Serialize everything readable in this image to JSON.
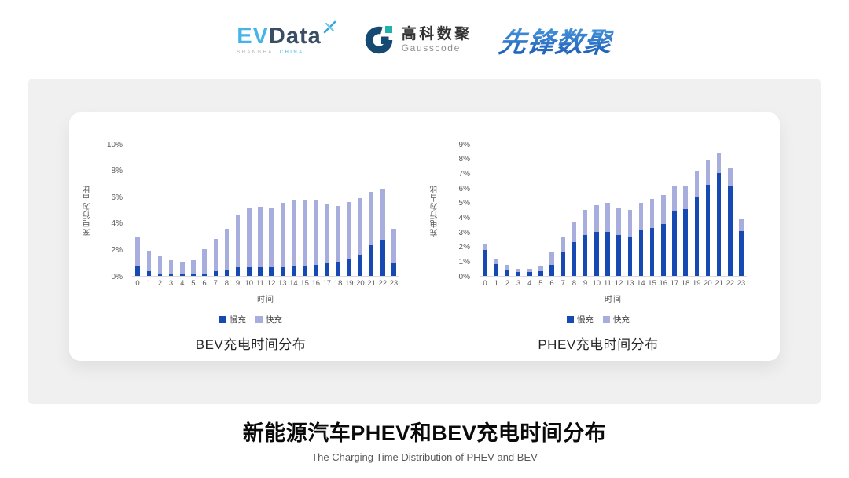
{
  "header": {
    "evdata": {
      "ev": "EV",
      "data": "Data",
      "sub_left": "SHANGHAI",
      "sub_right": "CHINA"
    },
    "gausscode": {
      "name_cn": "高科数聚",
      "name_en": "Gausscode"
    },
    "pioneer": {
      "name": "先锋数聚"
    }
  },
  "colors": {
    "slow_charge": "#1649b2",
    "fast_charge": "#a7aede",
    "evdata_blue": "#45b5e8",
    "evdata_dark": "#3a4e63",
    "gauss_navy": "#174a72",
    "gauss_teal": "#1fb1ac",
    "pioneer_blue": "#2b77cf",
    "panel_gray": "#f0f0f0"
  },
  "chart_data": [
    {
      "type": "bar",
      "stacked": true,
      "title": "BEV充电时间分布",
      "xlabel": "时间",
      "ylabel": "充电行为占比",
      "grid": false,
      "legend_position": "bottom",
      "categories": [
        "0",
        "1",
        "2",
        "3",
        "4",
        "5",
        "6",
        "7",
        "8",
        "9",
        "10",
        "11",
        "12",
        "13",
        "14",
        "15",
        "16",
        "17",
        "18",
        "19",
        "20",
        "21",
        "22",
        "23"
      ],
      "ylim": [
        0,
        10
      ],
      "ytick_step": 2,
      "ytick_suffix": "%",
      "series": [
        {
          "name": "慢充",
          "color": "#1649b2",
          "values": [
            0.8,
            0.35,
            0.2,
            0.1,
            0.1,
            0.1,
            0.15,
            0.35,
            0.5,
            0.7,
            0.65,
            0.7,
            0.65,
            0.7,
            0.75,
            0.75,
            0.85,
            1.0,
            1.1,
            1.3,
            1.6,
            2.35,
            2.75,
            0.95
          ]
        },
        {
          "name": "快充",
          "color": "#a7aede",
          "values": [
            2.1,
            1.55,
            1.3,
            1.1,
            1.0,
            1.1,
            1.85,
            2.45,
            3.05,
            3.9,
            4.55,
            4.55,
            4.55,
            4.85,
            5.0,
            5.0,
            4.95,
            4.5,
            4.2,
            4.3,
            4.3,
            4.0,
            3.8,
            2.6
          ]
        }
      ]
    },
    {
      "type": "bar",
      "stacked": true,
      "title": "PHEV充电时间分布",
      "xlabel": "时间",
      "ylabel": "充电行为占比",
      "grid": false,
      "legend_position": "bottom",
      "categories": [
        "0",
        "1",
        "2",
        "3",
        "4",
        "5",
        "6",
        "7",
        "8",
        "9",
        "10",
        "11",
        "12",
        "13",
        "14",
        "15",
        "16",
        "17",
        "18",
        "19",
        "20",
        "21",
        "22",
        "23"
      ],
      "ylim": [
        0,
        9
      ],
      "ytick_step": 1,
      "ytick_suffix": "%",
      "series": [
        {
          "name": "慢充",
          "color": "#1649b2",
          "values": [
            1.75,
            0.8,
            0.45,
            0.25,
            0.25,
            0.3,
            0.75,
            1.6,
            2.3,
            2.8,
            3.0,
            3.0,
            2.8,
            2.65,
            3.1,
            3.25,
            3.55,
            4.4,
            4.55,
            5.35,
            6.2,
            7.0,
            6.15,
            3.05
          ]
        },
        {
          "name": "快充",
          "color": "#a7aede",
          "values": [
            0.45,
            0.35,
            0.3,
            0.25,
            0.25,
            0.4,
            0.85,
            1.1,
            1.35,
            1.7,
            1.8,
            2.0,
            1.85,
            1.85,
            1.9,
            2.0,
            1.95,
            1.75,
            1.6,
            1.75,
            1.7,
            1.4,
            1.2,
            0.8
          ]
        }
      ]
    }
  ],
  "footer": {
    "title": "新能源汽车PHEV和BEV充电时间分布",
    "subtitle": "The Charging Time Distribution of PHEV and BEV"
  }
}
